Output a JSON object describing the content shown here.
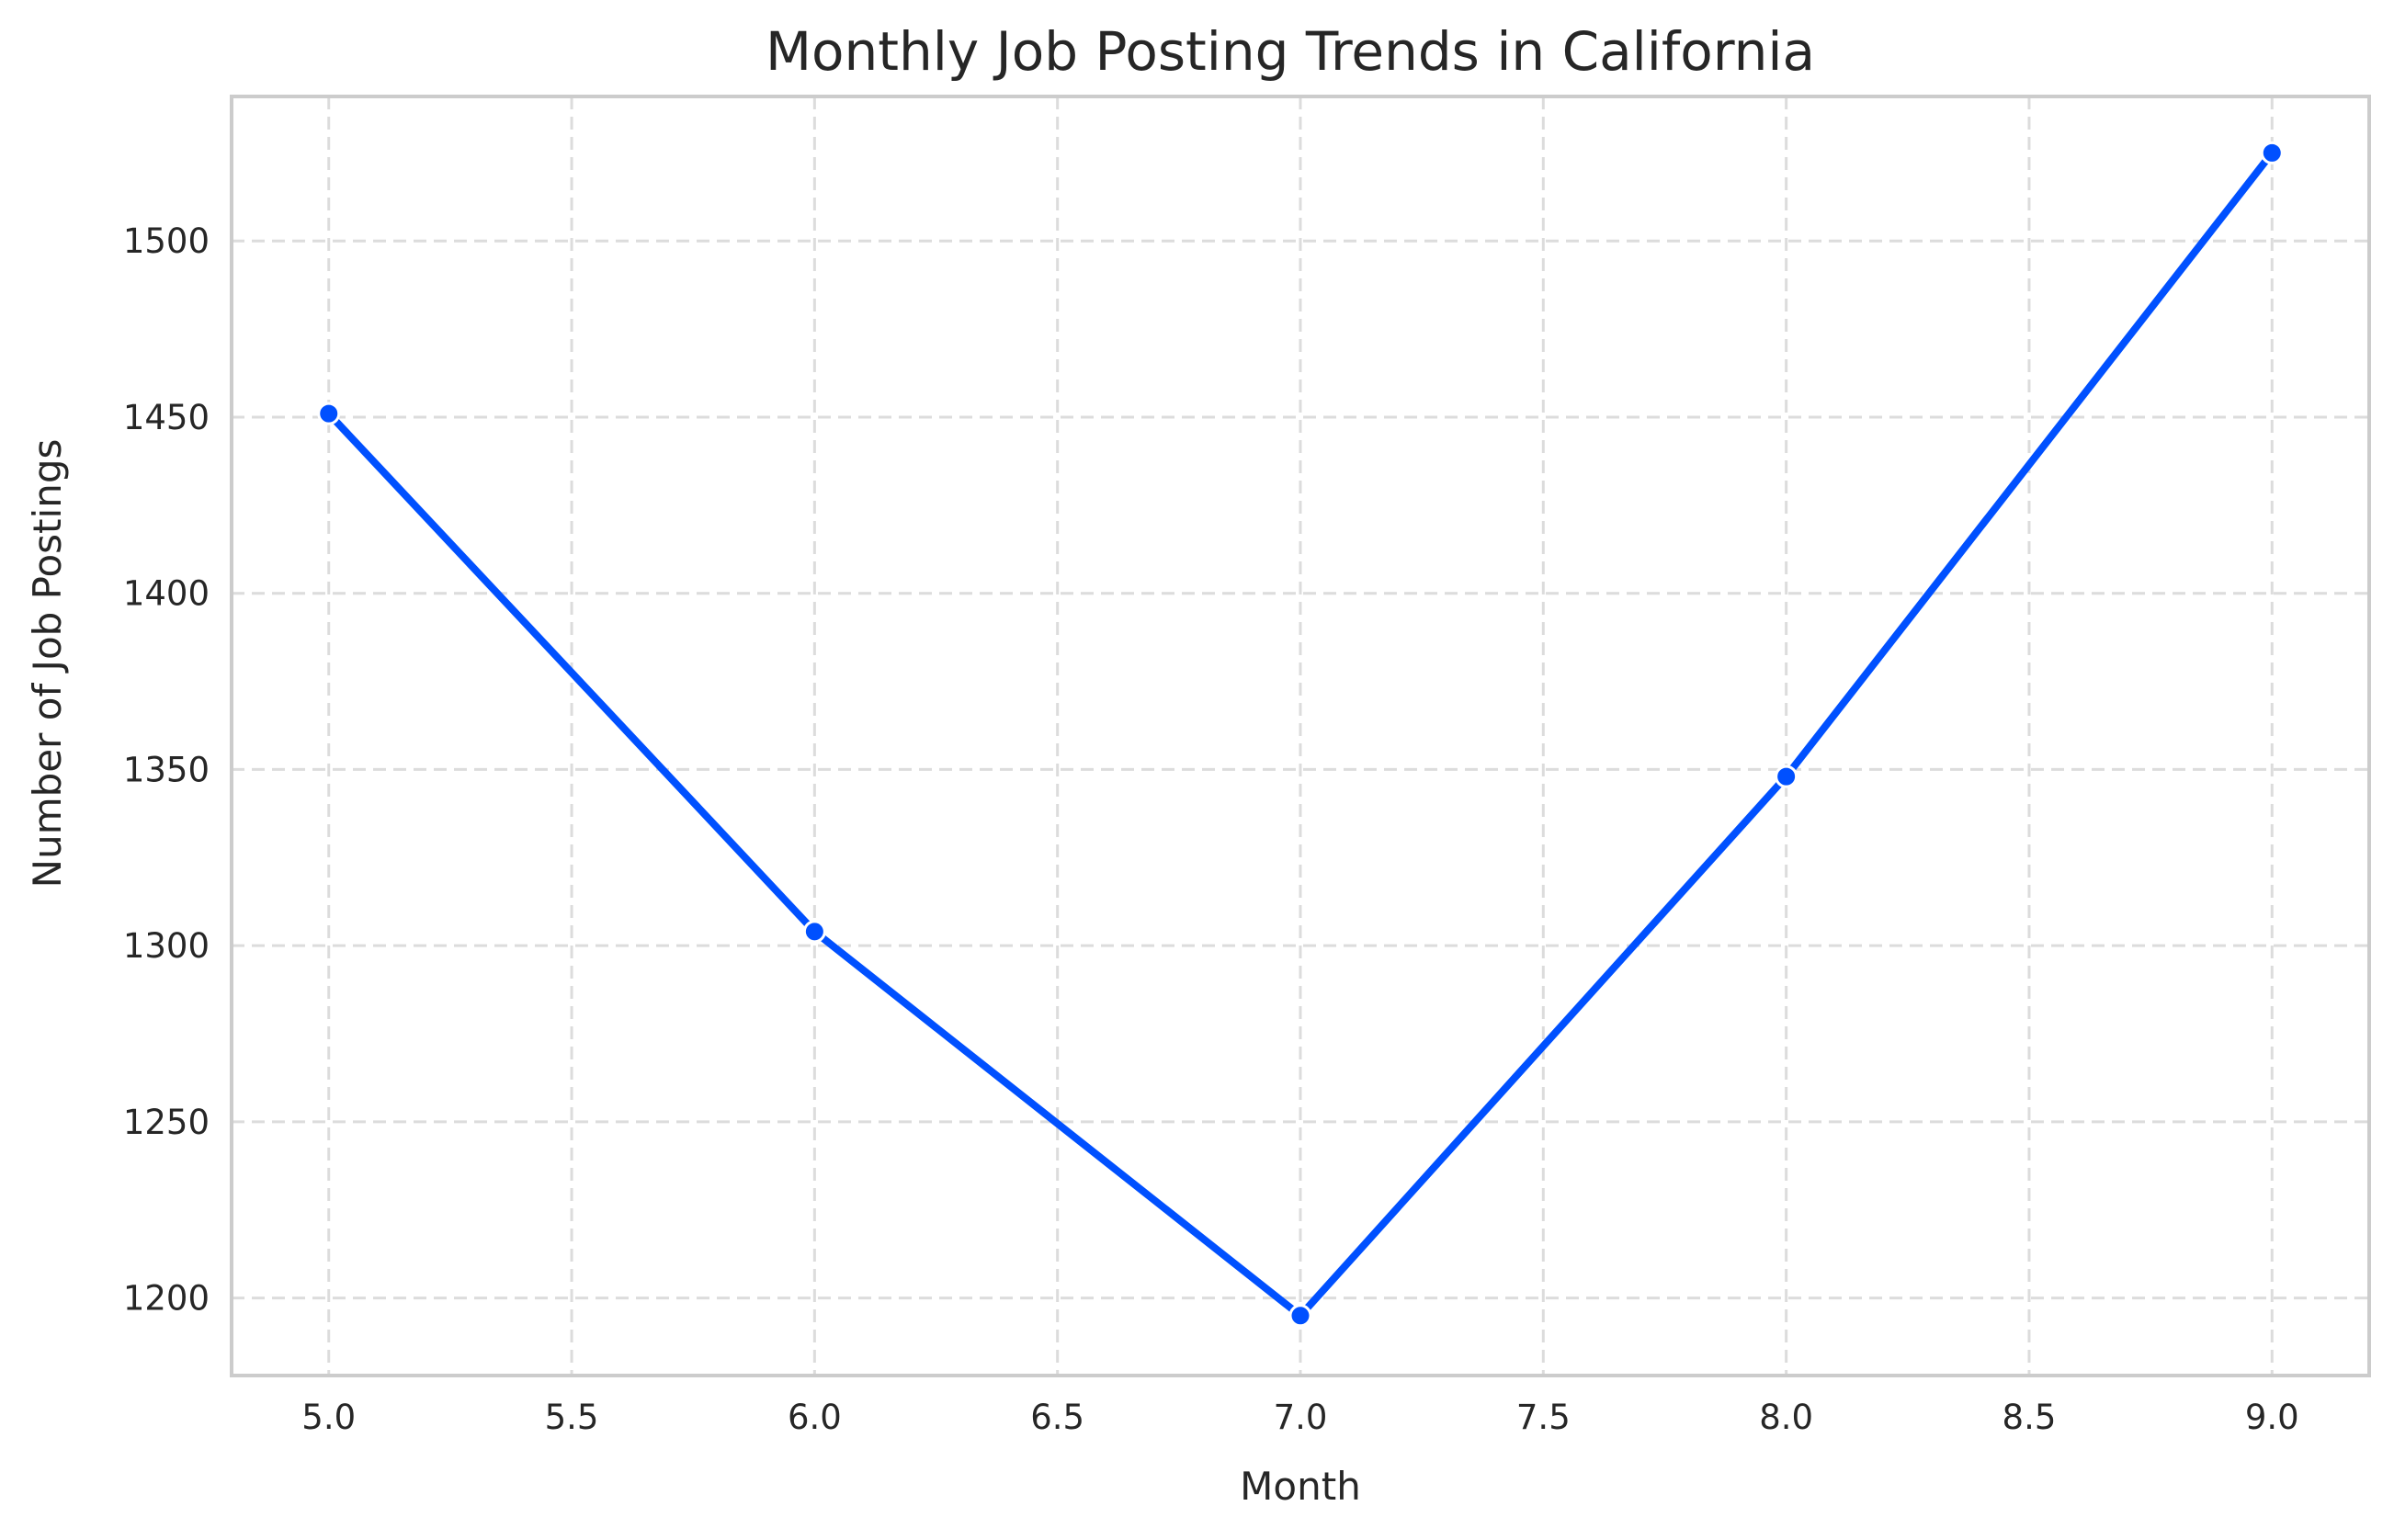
{
  "chart_data": {
    "type": "line",
    "title": "Monthly Job Posting Trends in California",
    "xlabel": "Month",
    "ylabel": "Number of Job Postings",
    "xlim": [
      4.8,
      9.2
    ],
    "ylim": [
      1178,
      1541
    ],
    "x_ticks": [
      5.0,
      5.5,
      6.0,
      6.5,
      7.0,
      7.5,
      8.0,
      8.5,
      9.0
    ],
    "x_tick_labels": [
      "5.0",
      "5.5",
      "6.0",
      "6.5",
      "7.0",
      "7.5",
      "8.0",
      "8.5",
      "9.0"
    ],
    "y_ticks": [
      1200,
      1250,
      1300,
      1350,
      1400,
      1450,
      1500
    ],
    "y_tick_labels": [
      "1200",
      "1250",
      "1300",
      "1350",
      "1400",
      "1450",
      "1500"
    ],
    "grid": true,
    "grid_style": "dashed",
    "series": [
      {
        "x": [
          5,
          6,
          7,
          8,
          9
        ],
        "values": [
          1451,
          1304,
          1195,
          1348,
          1525
        ],
        "color": "#0050ff",
        "marker": "circle"
      }
    ]
  }
}
